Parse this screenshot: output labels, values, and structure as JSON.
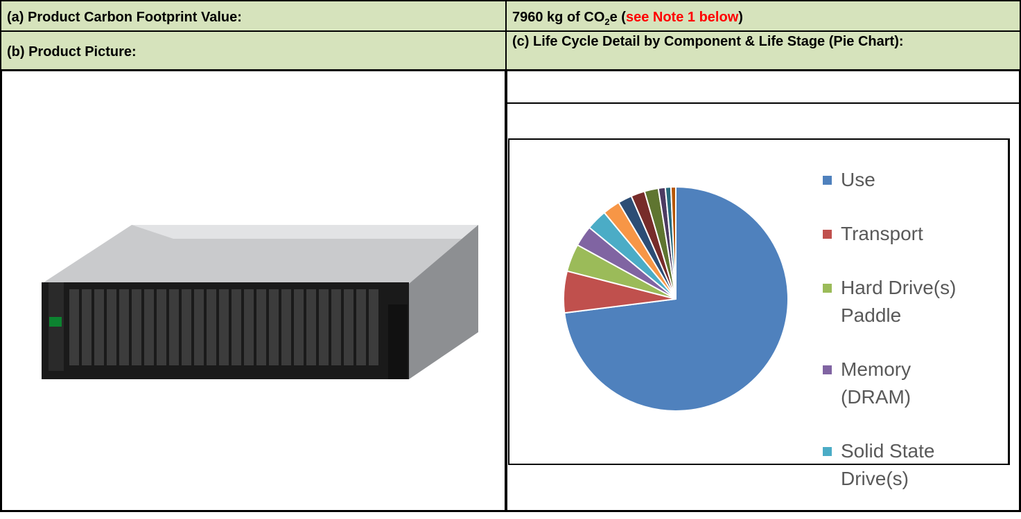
{
  "table": {
    "rows": [
      [
        "(a) Product Carbon Footprint Value:",
        [
          "7960 kg of CO",
          "2",
          "e (",
          "see Note 1 below",
          ")"
        ]
      ],
      [
        "(b) Product Picture:",
        "(c) Life Cycle Detail by Component & Life Stage (Pie Chart):"
      ]
    ]
  },
  "chart_data": {
    "type": "pie",
    "categories": [
      "Use",
      "Transport",
      "Hard Drive(s) Paddle",
      "Memory (DRAM)",
      "Solid State Drive(s)",
      null,
      null,
      null,
      null,
      null,
      null,
      null
    ],
    "values": [
      73,
      6,
      4,
      3,
      3,
      2.5,
      2,
      2,
      2,
      1,
      0.8,
      0.7
    ],
    "colors": [
      "#4f81bd",
      "#c0504d",
      "#9bbb59",
      "#8064a2",
      "#4bacc6",
      "#f79646",
      "#2c4d75",
      "#772c2a",
      "#5f7530",
      "#4d3b62",
      "#276a7c",
      "#b65708"
    ],
    "legend": "right"
  }
}
